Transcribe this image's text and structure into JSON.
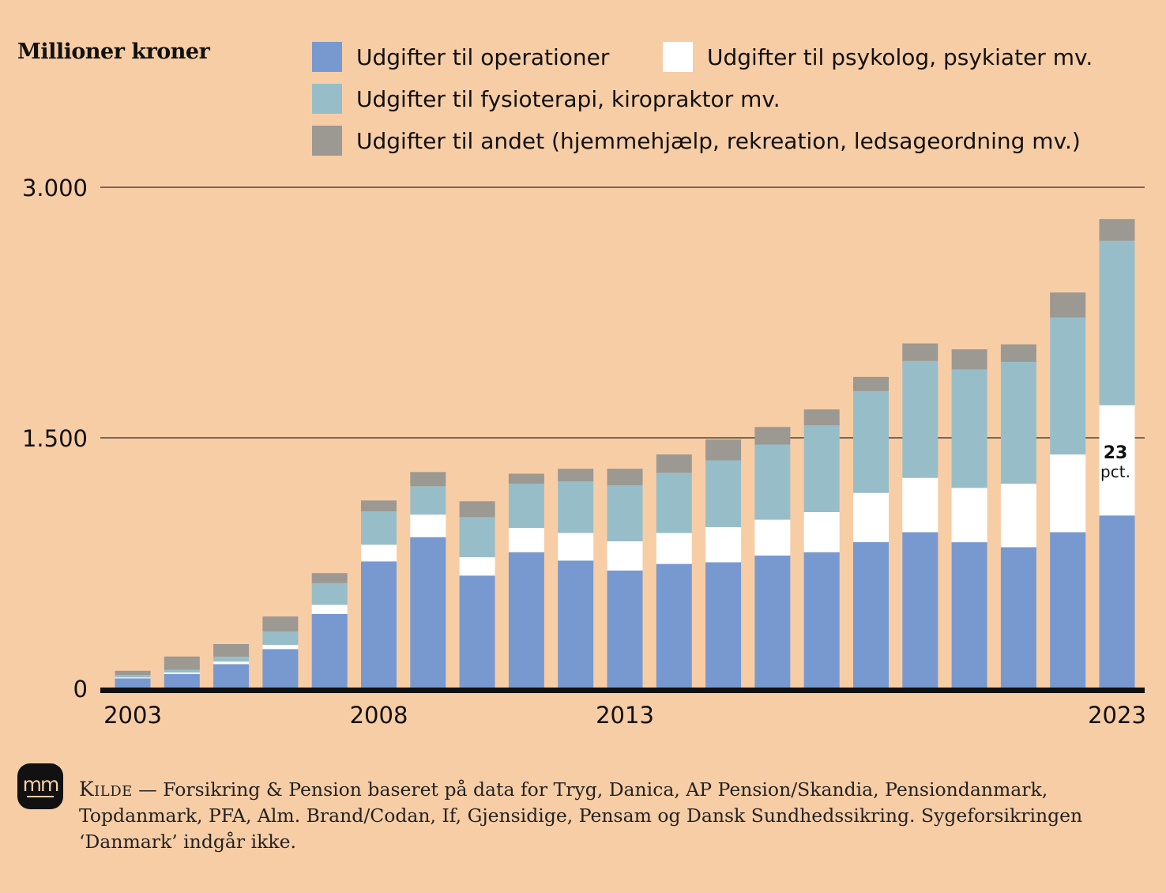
{
  "header": {
    "unit_title": "Millioner kroner"
  },
  "legend": [
    {
      "label": "Udgifter til operationer",
      "color": "#7799d0"
    },
    {
      "label": "Udgifter til psykolog, psykiater mv.",
      "color": "#ffffff"
    },
    {
      "label": "Udgifter til fysioterapi, kiropraktor mv.",
      "color": "#97bec8"
    },
    {
      "label": "Udgifter til andet (hjemmehjælp, rekreation, ledsageordning mv.)",
      "color": "#9c9892"
    }
  ],
  "annotation": {
    "value": "23",
    "unit": "pct."
  },
  "source": {
    "kicker": "Kilde",
    "dash": " — ",
    "text": "Forsikring & Pension baseret på data for Tryg, Danica, AP Pension/Skandia, Pensiondanmark, Topdanmark, PFA, Alm. Brand/Codan, If, Gjensidige, Pensam og Dansk Sundhedssikring. Sygeforsikringen ‘Danmark’ indgår ikke."
  },
  "logo": {
    "text": "mm"
  },
  "chart_data": {
    "type": "bar",
    "stacked": true,
    "ylabel": "Millioner kroner",
    "ylim": [
      0,
      3000
    ],
    "y_ticks": [
      0,
      1500,
      3000
    ],
    "y_tick_labels": [
      "0",
      "1.500",
      "3.000"
    ],
    "categories": [
      "2003",
      "2004",
      "2005",
      "2006",
      "2007",
      "2008",
      "2009",
      "2010",
      "2011",
      "2012",
      "2013",
      "2014",
      "2015",
      "2016",
      "2017",
      "2018",
      "2019",
      "2020",
      "2021",
      "2022",
      "2023"
    ],
    "x_tick_labels": [
      {
        "category": "2003",
        "label": "2003"
      },
      {
        "category": "2008",
        "label": "2008"
      },
      {
        "category": "2013",
        "label": "2013"
      },
      {
        "category": "2023",
        "label": "2023"
      }
    ],
    "grid": true,
    "legend_position": "top",
    "series": [
      {
        "name": "Udgifter til operationer",
        "color": "#7799d0",
        "values": [
          60,
          85,
          145,
          235,
          445,
          760,
          905,
          675,
          815,
          765,
          705,
          745,
          755,
          795,
          815,
          875,
          935,
          875,
          845,
          935,
          1035
        ]
      },
      {
        "name": "Udgifter til psykolog, psykiater mv.",
        "color": "#ffffff",
        "values": [
          5,
          10,
          15,
          25,
          55,
          100,
          135,
          110,
          145,
          165,
          175,
          185,
          210,
          215,
          240,
          295,
          325,
          325,
          380,
          465,
          660
        ]
      },
      {
        "name": "Udgifter til fysioterapi, kiropraktor mv.",
        "color": "#97bec8",
        "values": [
          15,
          15,
          30,
          80,
          130,
          200,
          170,
          240,
          265,
          310,
          335,
          360,
          400,
          450,
          520,
          610,
          700,
          710,
          730,
          820,
          985
        ]
      },
      {
        "name": "Udgifter til andet (hjemmehjælp, rekreation, ledsageordning mv.)",
        "color": "#9c9892",
        "values": [
          25,
          80,
          75,
          90,
          60,
          65,
          85,
          95,
          60,
          75,
          100,
          110,
          125,
          105,
          95,
          85,
          105,
          120,
          105,
          150,
          130
        ]
      }
    ]
  }
}
